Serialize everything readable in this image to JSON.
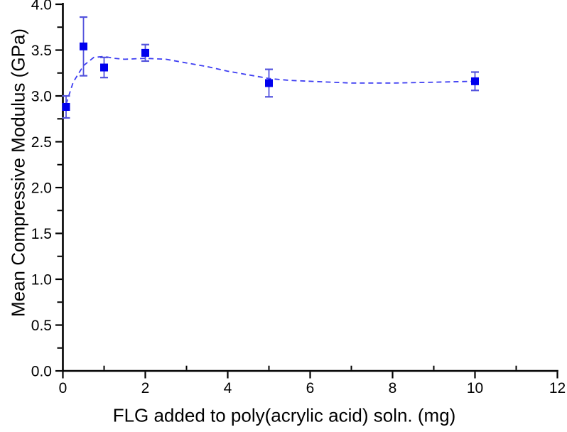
{
  "chart_data": {
    "type": "scatter",
    "title": "",
    "xlabel": "FLG added to poly(acrylic acid) soln. (mg)",
    "ylabel": "Mean Compressive Modulus (GPa)",
    "xlim": [
      0,
      12
    ],
    "ylim": [
      0.0,
      4.0
    ],
    "grid": false,
    "legend": "none",
    "x_major_ticks": [
      {
        "value": 0,
        "label": "0"
      },
      {
        "value": 2,
        "label": "2"
      },
      {
        "value": 4,
        "label": "4"
      },
      {
        "value": 6,
        "label": "6"
      },
      {
        "value": 8,
        "label": "8"
      },
      {
        "value": 10,
        "label": "10"
      },
      {
        "value": 12,
        "label": "12"
      }
    ],
    "x_minor_ticks": [
      1,
      3,
      5,
      7,
      9,
      11
    ],
    "y_major_ticks": [
      {
        "value": 0.0,
        "label": "0.0"
      },
      {
        "value": 0.5,
        "label": "0.5"
      },
      {
        "value": 1.0,
        "label": "1.0"
      },
      {
        "value": 1.5,
        "label": "1.5"
      },
      {
        "value": 2.0,
        "label": "2.0"
      },
      {
        "value": 2.5,
        "label": "2.5"
      },
      {
        "value": 3.0,
        "label": "3.0"
      },
      {
        "value": 3.5,
        "label": "3.5"
      },
      {
        "value": 4.0,
        "label": "4.0"
      }
    ],
    "y_minor_ticks": [
      0.25,
      0.75,
      1.25,
      1.75,
      2.25,
      2.75,
      3.25,
      3.75
    ],
    "series": [
      {
        "name": "mean-compressive-modulus",
        "marker": "filled-square",
        "marker_color": "#0000ee",
        "error_bar_color": "#5353dd",
        "points": [
          {
            "x": 0,
            "y": 2.88,
            "yerr": 0.12
          },
          {
            "x": 0.5,
            "y": 3.54,
            "yerr": 0.32
          },
          {
            "x": 1,
            "y": 3.31,
            "yerr": 0.11
          },
          {
            "x": 2,
            "y": 3.47,
            "yerr": 0.09
          },
          {
            "x": 5,
            "y": 3.14,
            "yerr": 0.15
          },
          {
            "x": 10,
            "y": 3.16,
            "yerr": 0.1
          }
        ]
      }
    ],
    "fit_curve": {
      "style": "dashed",
      "color": "#3d3df2",
      "points": [
        [
          0,
          2.91
        ],
        [
          0.25,
          3.15
        ],
        [
          0.5,
          3.33
        ],
        [
          0.75,
          3.42
        ],
        [
          1.0,
          3.43
        ],
        [
          1.25,
          3.41
        ],
        [
          1.5,
          3.4
        ],
        [
          2.0,
          3.41
        ],
        [
          2.5,
          3.4
        ],
        [
          3.0,
          3.36
        ],
        [
          3.5,
          3.32
        ],
        [
          4.0,
          3.27
        ],
        [
          4.5,
          3.23
        ],
        [
          5.0,
          3.19
        ],
        [
          5.5,
          3.17
        ],
        [
          6.0,
          3.16
        ],
        [
          7.0,
          3.14
        ],
        [
          8.0,
          3.14
        ],
        [
          9.0,
          3.15
        ],
        [
          10.0,
          3.16
        ]
      ]
    },
    "colors": {
      "axis": "#000000",
      "tick_text": "#000000",
      "background": "#ffffff"
    }
  }
}
